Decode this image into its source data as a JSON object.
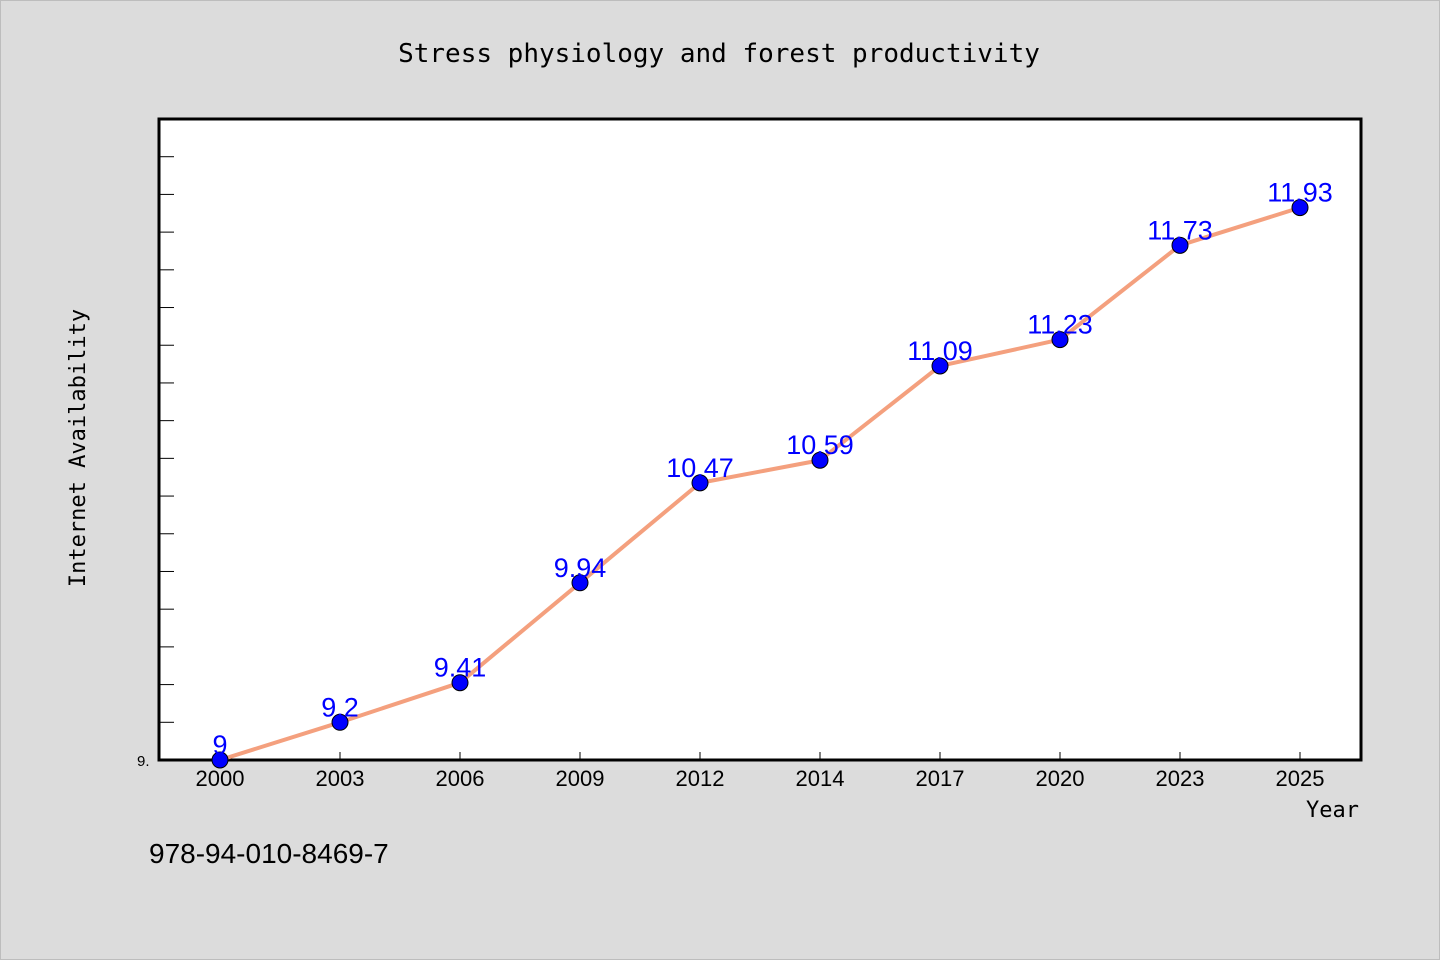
{
  "chart_data": {
    "type": "line",
    "title": "Stress physiology and forest productivity",
    "xlabel": "Year",
    "ylabel": "Internet Availability",
    "categories": [
      "2000",
      "2003",
      "2006",
      "2009",
      "2012",
      "2014",
      "2017",
      "2020",
      "2023",
      "2025"
    ],
    "values": [
      9,
      9.2,
      9.41,
      9.94,
      10.47,
      10.59,
      11.09,
      11.23,
      11.73,
      11.93
    ],
    "data_labels": [
      "9",
      "9.2",
      "9.41",
      "9.94",
      "10.47",
      "10.59",
      "11.09",
      "11.23",
      "11.73",
      "11.93"
    ],
    "ylim": [
      9,
      12.4
    ],
    "ytick_label": "9.",
    "grid": false,
    "line_color": "#f4a07e",
    "marker_color": "#0000ff",
    "label_color": "#0000ff",
    "plot_background": "#ffffff",
    "page_background": "#dcdcdc"
  },
  "footer": {
    "isbn": "978-94-010-8469-7"
  }
}
